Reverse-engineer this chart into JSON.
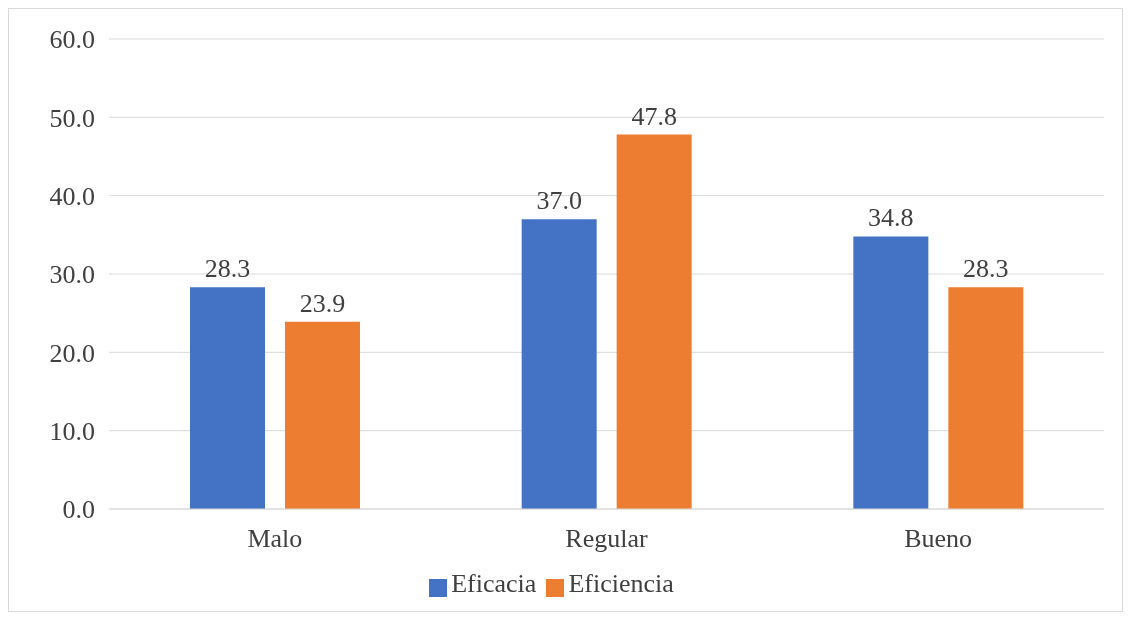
{
  "chart_data": {
    "type": "bar",
    "categories": [
      "Malo",
      "Regular",
      "Bueno"
    ],
    "series": [
      {
        "name": "Eficacia",
        "color": "#4472c4",
        "values": [
          28.3,
          37.0,
          34.8
        ],
        "value_labels": [
          "28.3",
          "37.0",
          "34.8"
        ]
      },
      {
        "name": "Eficiencia",
        "color": "#ed7d31",
        "values": [
          23.9,
          47.8,
          28.3
        ],
        "value_labels": [
          "23.9",
          "47.8",
          "28.3"
        ]
      }
    ],
    "ylim": [
      0,
      60
    ],
    "yticks": [
      {
        "value": 0,
        "label": "0.0"
      },
      {
        "value": 10,
        "label": "10.0"
      },
      {
        "value": 20,
        "label": "20.0"
      },
      {
        "value": 30,
        "label": "30.0"
      },
      {
        "value": 40,
        "label": "40.0"
      },
      {
        "value": 50,
        "label": "50.0"
      },
      {
        "value": 60,
        "label": "60.0"
      }
    ],
    "grid": "y",
    "legend": "bottom"
  }
}
